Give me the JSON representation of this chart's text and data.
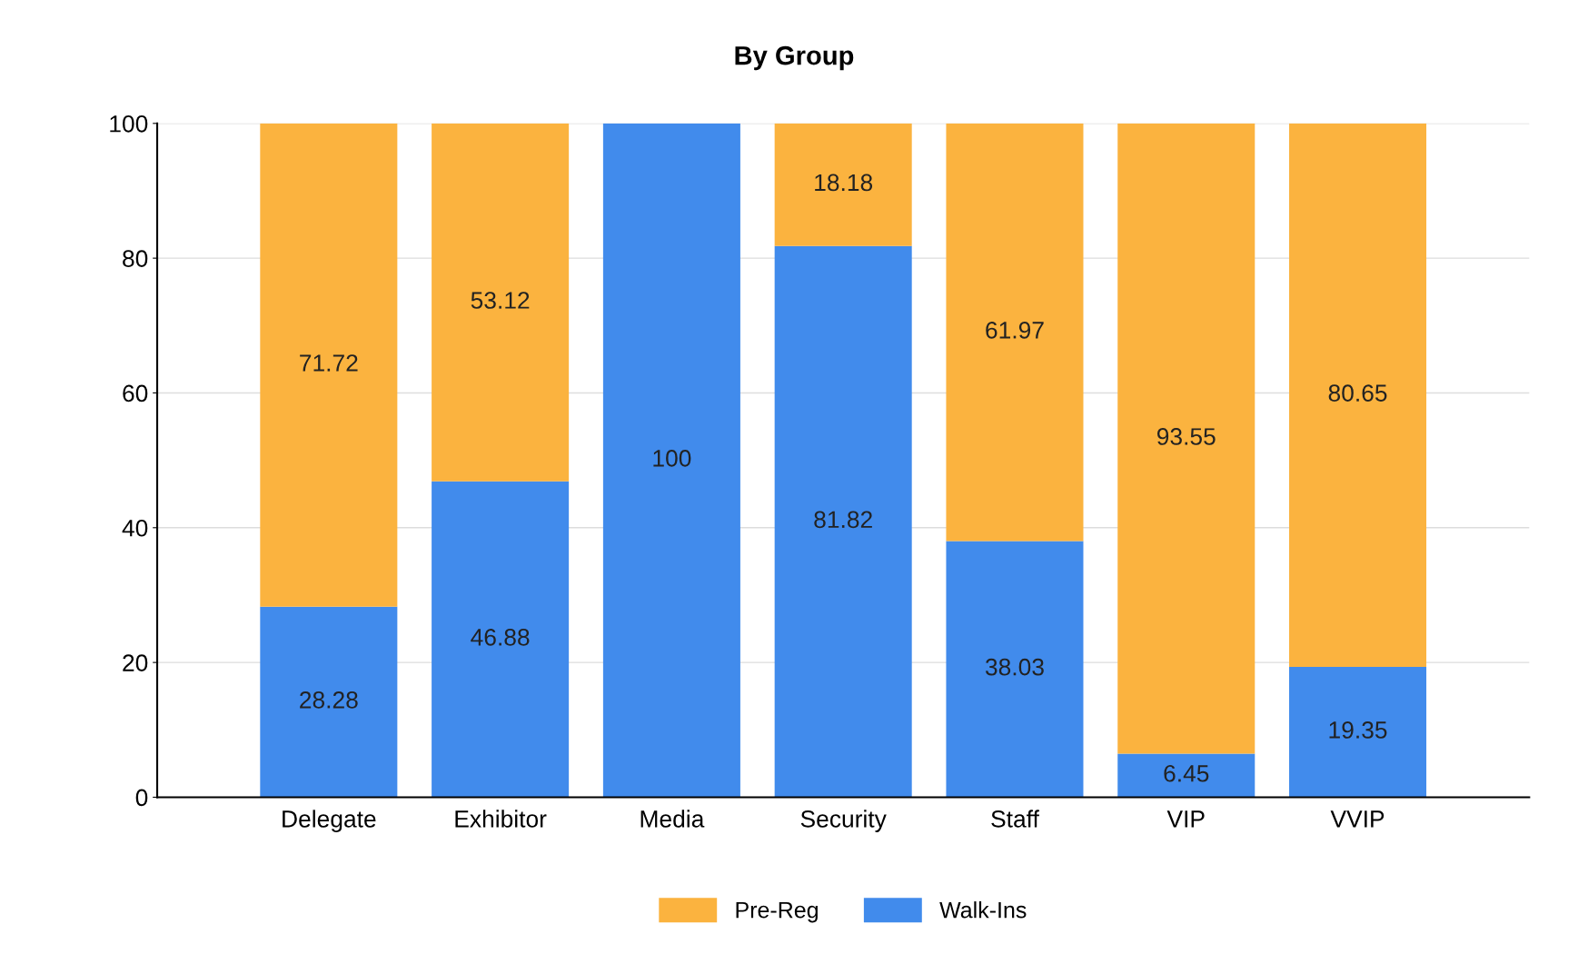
{
  "chart_data": {
    "type": "bar",
    "title": "By Group",
    "stacked": true,
    "categories": [
      "Delegate",
      "Exhibitor",
      "Media",
      "Security",
      "Staff",
      "VIP",
      "VVIP"
    ],
    "series": [
      {
        "name": "Walk-Ins",
        "color": "#418bec",
        "values": [
          28.28,
          46.88,
          100,
          81.82,
          38.03,
          6.45,
          19.35
        ],
        "value_labels": [
          "28.28",
          "46.88",
          "100",
          "81.82",
          "38.03",
          "6.45",
          "19.35"
        ]
      },
      {
        "name": "Pre-Reg",
        "color": "#fbb33f",
        "values": [
          71.72,
          53.12,
          0,
          18.18,
          61.97,
          93.55,
          80.65
        ],
        "value_labels": [
          "71.72",
          "53.12",
          null,
          "18.18",
          "61.97",
          "93.55",
          "80.65"
        ]
      }
    ],
    "ylim": [
      0,
      100
    ],
    "yticks": [
      0,
      20,
      40,
      60,
      80,
      100
    ],
    "grid": "y",
    "legend": "bottom"
  }
}
